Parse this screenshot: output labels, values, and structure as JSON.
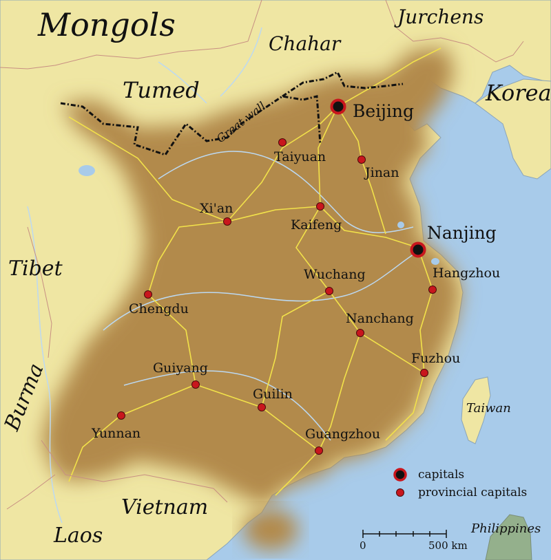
{
  "regions": {
    "mongols": "Mongols",
    "chahar": "Chahar",
    "jurchens": "Jurchens",
    "tumed": "Tumed",
    "korea": "Korea",
    "tibet": "Tibet",
    "burma": "Burma",
    "vietnam": "Vietnam",
    "laos": "Laos",
    "taiwan": "Taiwan",
    "philippines": "Philippines"
  },
  "great_wall_label": "Great wall",
  "capitals": {
    "beijing": "Beijing",
    "nanjing": "Nanjing"
  },
  "provincial_capitals": {
    "taiyuan": "Taiyuan",
    "jinan": "Jinan",
    "xian": "Xi'an",
    "kaifeng": "Kaifeng",
    "wuchang": "Wuchang",
    "hangzhou": "Hangzhou",
    "chengdu": "Chengdu",
    "nanchang": "Nanchang",
    "fuzhou": "Fuzhou",
    "guiyang": "Guiyang",
    "guilin": "Guilin",
    "yunnan": "Yunnan",
    "guangzhou": "Guangzhou"
  },
  "legend": {
    "capitals": "capitals",
    "provincial": "provincial capitals"
  },
  "scale": {
    "start": "0",
    "end": "500 km"
  },
  "colors": {
    "sea": "#a8cbea",
    "land": "#efe6a3",
    "empire": "#b28a4c",
    "river": "#bcd9f2",
    "road": "#f2e24a",
    "wall": "#111111",
    "marker": "#c8161d"
  }
}
